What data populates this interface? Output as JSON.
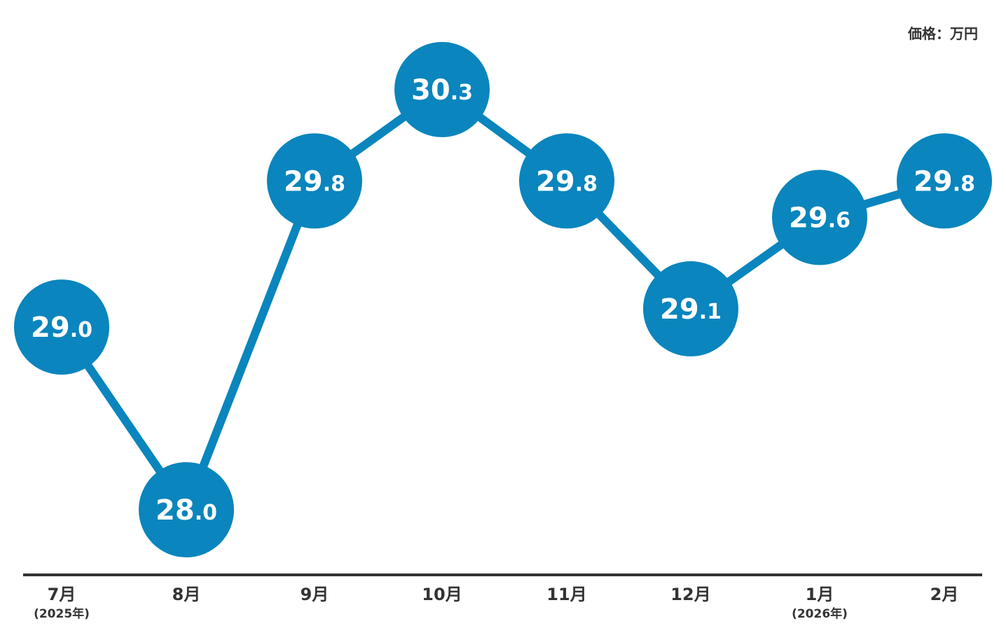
{
  "chart_data": {
    "type": "line",
    "unit_label": "価格：万円",
    "categories": [
      "7月",
      "8月",
      "9月",
      "10月",
      "11月",
      "12月",
      "1月",
      "2月"
    ],
    "sublabels": [
      "(2025年)",
      "",
      "",
      "",
      "",
      "",
      "(2026年)",
      ""
    ],
    "values": [
      29.0,
      28.0,
      29.8,
      30.3,
      29.8,
      29.1,
      29.6,
      29.8
    ],
    "value_labels": [
      "29.0",
      "28.0",
      "29.8",
      "30.3",
      "29.8",
      "29.1",
      "29.6",
      "29.8"
    ],
    "colors": {
      "series": "#0a85bd",
      "axis": "#333333",
      "label": "#ffffff"
    },
    "grid": false
  }
}
